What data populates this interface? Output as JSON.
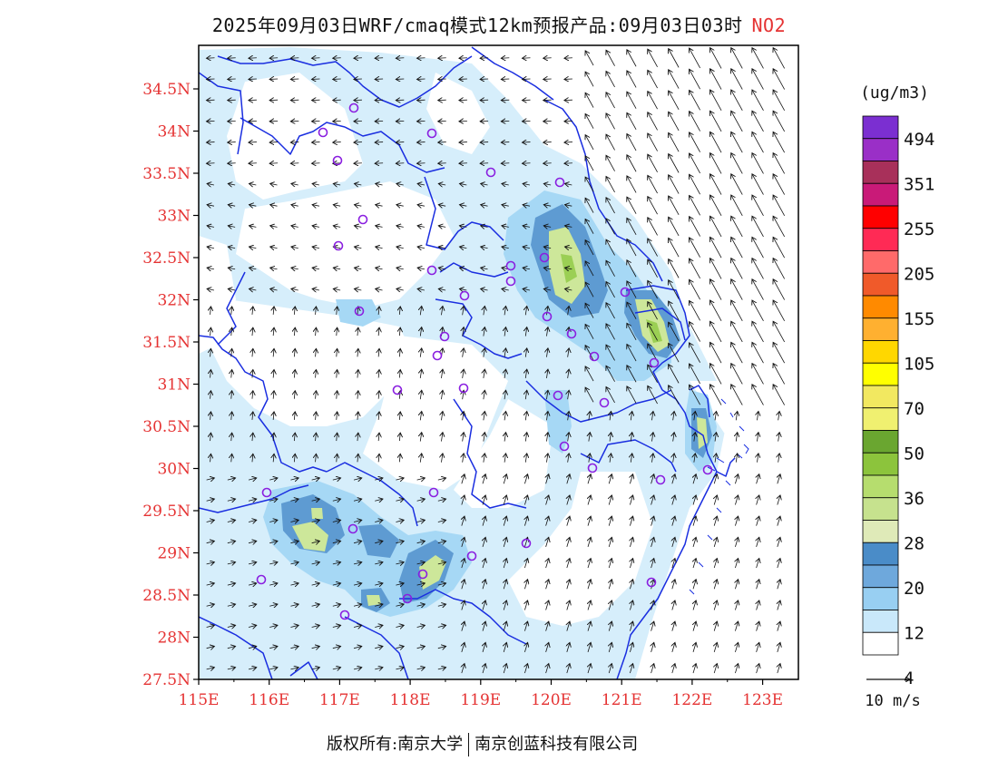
{
  "title": {
    "main": "2025年09月03日WRF/cmaq模式12km预报产品:09月03日03时",
    "species": "NO2"
  },
  "axes": {
    "lat_labels": [
      "34.5N",
      "34N",
      "33.5N",
      "33N",
      "32.5N",
      "32N",
      "31.5N",
      "31N",
      "30.5N",
      "30N",
      "29.5N",
      "29N",
      "28.5N",
      "28N",
      "27.5N"
    ],
    "lon_labels": [
      "115E",
      "116E",
      "117E",
      "118E",
      "119E",
      "120E",
      "121E",
      "122E",
      "123E"
    ],
    "label_color": "#e53333"
  },
  "colorbar": {
    "unit": "(ug/m3)",
    "labels": [
      "494",
      "351",
      "255",
      "205",
      "155",
      "105",
      "70",
      "50",
      "36",
      "28",
      "20",
      "12",
      "4"
    ],
    "colors_top_to_bottom": [
      "#7b2fd1",
      "#9a2fc7",
      "#a8305a",
      "#c91a78",
      "#ff0000",
      "#ff2a55",
      "#ff6a6a",
      "#f05a2a",
      "#ff8a00",
      "#ffb030",
      "#ffd700",
      "#ffff00",
      "#f2e860",
      "#f0f070",
      "#6aa630",
      "#8cc43c",
      "#b6dd6e",
      "#c6e28e",
      "#dfeab8",
      "#4a8cc8",
      "#6ea8dc",
      "#98cff2",
      "#c9e8fa",
      "#ffffff"
    ]
  },
  "wind": {
    "legend_label": "10 m/s"
  },
  "footer": {
    "left": "版权所有:南京大学",
    "right": "南京创蓝科技有限公司"
  },
  "colors": {
    "boundary": "#1a2ee0",
    "station": "#8a1fe0",
    "frame": "#000000"
  }
}
